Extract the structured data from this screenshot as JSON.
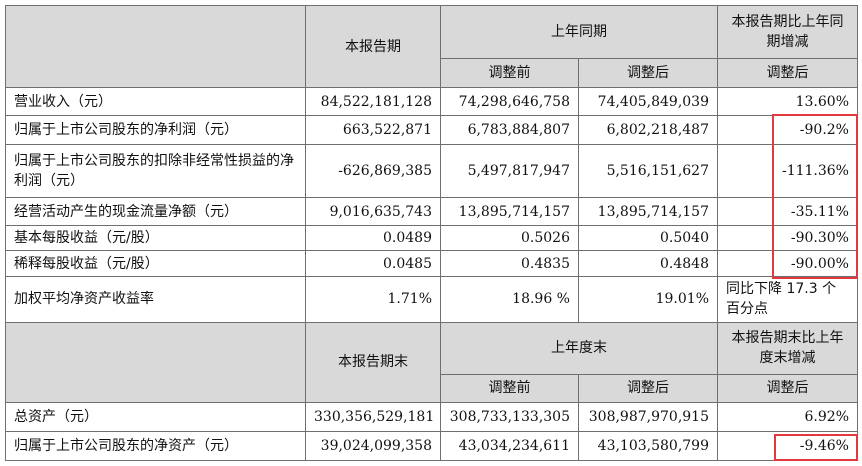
{
  "header": {
    "current_period": "本报告期",
    "last_year_same": "上年同期",
    "change_vs_last_year": "本报告期比上年同期增减",
    "before_adjust": "调整前",
    "after_adjust": "调整后",
    "change_after_adjust": "调整后"
  },
  "rows": [
    {
      "label": "营业收入（元）",
      "current": "84,522,181,128",
      "before": "74,298,646,758",
      "after": "74,405,849,039",
      "change": "13.60%"
    },
    {
      "label": "归属于上市公司股东的净利润（元）",
      "current": "663,522,871",
      "before": "6,783,884,807",
      "after": "6,802,218,487",
      "change": "-90.2%"
    },
    {
      "label": "归属于上市公司股东的扣除非经常性损益的净利润（元）",
      "current": "-626,869,385",
      "before": "5,497,817,947",
      "after": "5,516,151,627",
      "change": "-111.36%"
    },
    {
      "label": "经营活动产生的现金流量净额（元）",
      "current": "9,016,635,743",
      "before": "13,895,714,157",
      "after": "13,895,714,157",
      "change": "-35.11%"
    },
    {
      "label": "基本每股收益（元/股）",
      "current": "0.0489",
      "before": "0.5026",
      "after": "0.5040",
      "change": "-90.30%"
    },
    {
      "label": "稀释每股收益（元/股）",
      "current": "0.0485",
      "before": "0.4835",
      "after": "0.4848",
      "change": "-90.00%"
    },
    {
      "label": "加权平均净资产收益率",
      "current": "1.71%",
      "before": "18.96 %",
      "after": "19.01%",
      "change": "同比下降 17.3 个百分点"
    }
  ],
  "header2": {
    "period_end": "本报告期末",
    "last_year_end": "上年度末",
    "change_vs_last_year_end": "本报告期末比上年度末增减",
    "before_adjust": "调整前",
    "after_adjust": "调整后",
    "change_after_adjust": "调整后"
  },
  "rows2": [
    {
      "label": "总资产（元）",
      "current": "330,356,529,181",
      "before": "308,733,133,305",
      "after": "308,987,970,915",
      "change": "6.92%"
    },
    {
      "label": "归属于上市公司股东的净资产（元）",
      "current": "39,024,099,358",
      "before": "43,034,234,611",
      "after": "43,103,580,799",
      "change": "-9.46%"
    }
  ],
  "colors": {
    "highlight": "#e03a3e",
    "header_bg": "#d9d9d9",
    "border": "#6f6f6f"
  }
}
